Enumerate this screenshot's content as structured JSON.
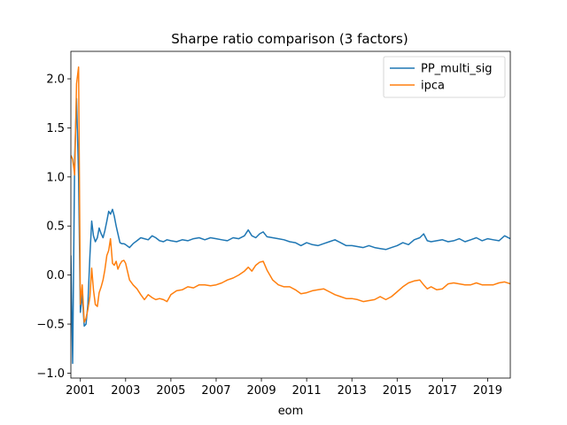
{
  "chart_data": {
    "type": "line",
    "title": "Sharpe ratio comparison (3 factors)",
    "xlabel": "eom",
    "ylabel": "",
    "xlim": [
      2000.58,
      2020.0
    ],
    "ylim": [
      -1.05,
      2.28
    ],
    "x_ticks": [
      2001,
      2003,
      2005,
      2007,
      2009,
      2011,
      2013,
      2015,
      2017,
      2019
    ],
    "x_tick_labels": [
      "2001",
      "2003",
      "2005",
      "2007",
      "2009",
      "2011",
      "2013",
      "2015",
      "2017",
      "2019"
    ],
    "y_ticks": [
      -1.0,
      -0.5,
      0.0,
      0.5,
      1.0,
      1.5,
      2.0
    ],
    "y_tick_labels": [
      "−1.0",
      "−0.5",
      "0.0",
      "0.5",
      "1.0",
      "1.5",
      "2.0"
    ],
    "legend_position": "top-right",
    "grid": false,
    "series": [
      {
        "name": "PP_multi_sig",
        "color": "#1f77b4",
        "x": [
          2000.58,
          2000.66,
          2000.75,
          2000.83,
          2000.92,
          2001.0,
          2001.08,
          2001.17,
          2001.25,
          2001.33,
          2001.42,
          2001.5,
          2001.58,
          2001.66,
          2001.75,
          2001.83,
          2001.92,
          2002.0,
          2002.08,
          2002.17,
          2002.25,
          2002.33,
          2002.42,
          2002.5,
          2002.58,
          2002.66,
          2002.75,
          2002.83,
          2002.92,
          2003.0,
          2003.17,
          2003.33,
          2003.5,
          2003.67,
          2003.83,
          2004.0,
          2004.17,
          2004.33,
          2004.5,
          2004.67,
          2004.83,
          2005.0,
          2005.25,
          2005.5,
          2005.75,
          2006.0,
          2006.25,
          2006.5,
          2006.75,
          2007.0,
          2007.25,
          2007.5,
          2007.75,
          2008.0,
          2008.25,
          2008.42,
          2008.58,
          2008.75,
          2008.92,
          2009.08,
          2009.25,
          2009.5,
          2009.75,
          2010.0,
          2010.25,
          2010.5,
          2010.75,
          2011.0,
          2011.25,
          2011.5,
          2011.75,
          2012.0,
          2012.25,
          2012.5,
          2012.75,
          2013.0,
          2013.25,
          2013.5,
          2013.75,
          2014.0,
          2014.25,
          2014.5,
          2014.75,
          2015.0,
          2015.25,
          2015.5,
          2015.75,
          2016.0,
          2016.17,
          2016.33,
          2016.5,
          2016.75,
          2017.0,
          2017.25,
          2017.5,
          2017.75,
          2018.0,
          2018.25,
          2018.5,
          2018.75,
          2019.0,
          2019.25,
          2019.5,
          2019.75,
          2020.0
        ],
        "y": [
          0.2,
          -0.9,
          1.2,
          1.8,
          1.0,
          -0.38,
          -0.2,
          -0.52,
          -0.5,
          -0.3,
          0.2,
          0.55,
          0.4,
          0.34,
          0.38,
          0.48,
          0.42,
          0.38,
          0.45,
          0.55,
          0.65,
          0.62,
          0.67,
          0.6,
          0.5,
          0.42,
          0.33,
          0.32,
          0.32,
          0.31,
          0.28,
          0.32,
          0.35,
          0.38,
          0.37,
          0.36,
          0.4,
          0.38,
          0.35,
          0.34,
          0.36,
          0.35,
          0.34,
          0.36,
          0.35,
          0.37,
          0.38,
          0.36,
          0.38,
          0.37,
          0.36,
          0.35,
          0.38,
          0.37,
          0.4,
          0.46,
          0.4,
          0.38,
          0.42,
          0.44,
          0.39,
          0.38,
          0.37,
          0.36,
          0.34,
          0.33,
          0.3,
          0.33,
          0.31,
          0.3,
          0.32,
          0.34,
          0.36,
          0.33,
          0.3,
          0.3,
          0.29,
          0.28,
          0.3,
          0.28,
          0.27,
          0.26,
          0.28,
          0.3,
          0.33,
          0.31,
          0.36,
          0.38,
          0.42,
          0.35,
          0.34,
          0.35,
          0.36,
          0.34,
          0.35,
          0.37,
          0.34,
          0.36,
          0.38,
          0.35,
          0.37,
          0.36,
          0.35,
          0.4,
          0.37
        ]
      },
      {
        "name": "ipca",
        "color": "#ff7f0e",
        "x": [
          2000.58,
          2000.66,
          2000.75,
          2000.83,
          2000.92,
          2001.0,
          2001.08,
          2001.17,
          2001.25,
          2001.33,
          2001.42,
          2001.5,
          2001.58,
          2001.66,
          2001.75,
          2001.83,
          2001.92,
          2002.0,
          2002.08,
          2002.17,
          2002.25,
          2002.33,
          2002.42,
          2002.5,
          2002.58,
          2002.66,
          2002.75,
          2002.83,
          2002.92,
          2003.0,
          2003.17,
          2003.33,
          2003.5,
          2003.67,
          2003.83,
          2004.0,
          2004.17,
          2004.33,
          2004.5,
          2004.67,
          2004.83,
          2005.0,
          2005.25,
          2005.5,
          2005.75,
          2006.0,
          2006.25,
          2006.5,
          2006.75,
          2007.0,
          2007.25,
          2007.5,
          2007.75,
          2008.0,
          2008.25,
          2008.42,
          2008.58,
          2008.75,
          2008.92,
          2009.08,
          2009.25,
          2009.5,
          2009.75,
          2010.0,
          2010.25,
          2010.5,
          2010.75,
          2011.0,
          2011.25,
          2011.5,
          2011.75,
          2012.0,
          2012.25,
          2012.5,
          2012.75,
          2013.0,
          2013.25,
          2013.5,
          2013.75,
          2014.0,
          2014.25,
          2014.5,
          2014.75,
          2015.0,
          2015.25,
          2015.5,
          2015.75,
          2016.0,
          2016.17,
          2016.33,
          2016.5,
          2016.75,
          2017.0,
          2017.25,
          2017.5,
          2017.75,
          2018.0,
          2018.25,
          2018.5,
          2018.75,
          2019.0,
          2019.25,
          2019.5,
          2019.75,
          2020.0
        ],
        "y": [
          1.22,
          1.18,
          1.02,
          1.95,
          2.12,
          -0.3,
          -0.1,
          -0.48,
          -0.44,
          -0.35,
          -0.22,
          0.07,
          -0.15,
          -0.3,
          -0.32,
          -0.18,
          -0.12,
          -0.05,
          0.05,
          0.2,
          0.25,
          0.37,
          0.12,
          0.1,
          0.14,
          0.06,
          0.11,
          0.14,
          0.15,
          0.12,
          -0.05,
          -0.1,
          -0.14,
          -0.2,
          -0.25,
          -0.2,
          -0.23,
          -0.25,
          -0.24,
          -0.25,
          -0.27,
          -0.2,
          -0.16,
          -0.15,
          -0.12,
          -0.13,
          -0.1,
          -0.1,
          -0.11,
          -0.1,
          -0.08,
          -0.05,
          -0.03,
          0.0,
          0.04,
          0.08,
          0.04,
          0.1,
          0.13,
          0.14,
          0.05,
          -0.05,
          -0.1,
          -0.12,
          -0.12,
          -0.15,
          -0.19,
          -0.18,
          -0.16,
          -0.15,
          -0.14,
          -0.17,
          -0.2,
          -0.22,
          -0.24,
          -0.24,
          -0.25,
          -0.27,
          -0.26,
          -0.25,
          -0.22,
          -0.25,
          -0.22,
          -0.17,
          -0.12,
          -0.08,
          -0.06,
          -0.05,
          -0.1,
          -0.14,
          -0.12,
          -0.15,
          -0.14,
          -0.09,
          -0.08,
          -0.09,
          -0.1,
          -0.1,
          -0.08,
          -0.1,
          -0.1,
          -0.1,
          -0.08,
          -0.07,
          -0.09
        ]
      }
    ]
  }
}
